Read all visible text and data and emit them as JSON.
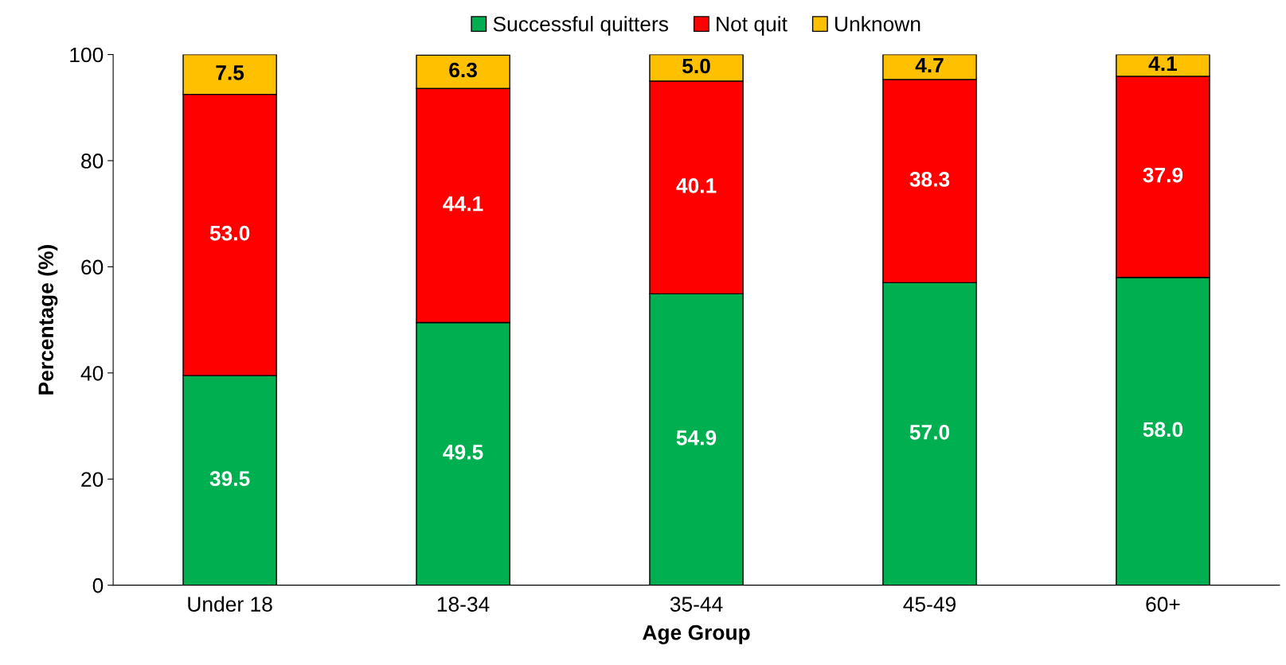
{
  "chart_data": {
    "type": "bar",
    "stacked": true,
    "xlabel": "Age Group",
    "ylabel": "Percentage (%)",
    "categories": [
      "Under 18",
      "18-34",
      "35-44",
      "45-49",
      "60+"
    ],
    "series": [
      {
        "name": "Successful quitters",
        "color": "#00b050",
        "values": [
          39.5,
          49.5,
          54.9,
          57.0,
          58.0
        ],
        "value_labels": [
          "39.5",
          "49.5",
          "54.9",
          "57.0",
          "58.0"
        ]
      },
      {
        "name": "Not quit",
        "color": "#ff0000",
        "values": [
          53.0,
          44.1,
          40.1,
          38.3,
          37.9
        ],
        "value_labels": [
          "53.0",
          "44.1",
          "40.1",
          "38.3",
          "37.9"
        ]
      },
      {
        "name": "Unknown",
        "color": "#ffc000",
        "values": [
          7.5,
          6.3,
          5.0,
          4.7,
          4.1
        ],
        "value_labels": [
          "7.5",
          "6.3",
          "5.0",
          "4.7",
          "4.1"
        ]
      }
    ],
    "ylim": [
      0,
      100
    ],
    "yticks": [
      0,
      20,
      40,
      60,
      80,
      100
    ],
    "grid": false,
    "legend": "top"
  }
}
